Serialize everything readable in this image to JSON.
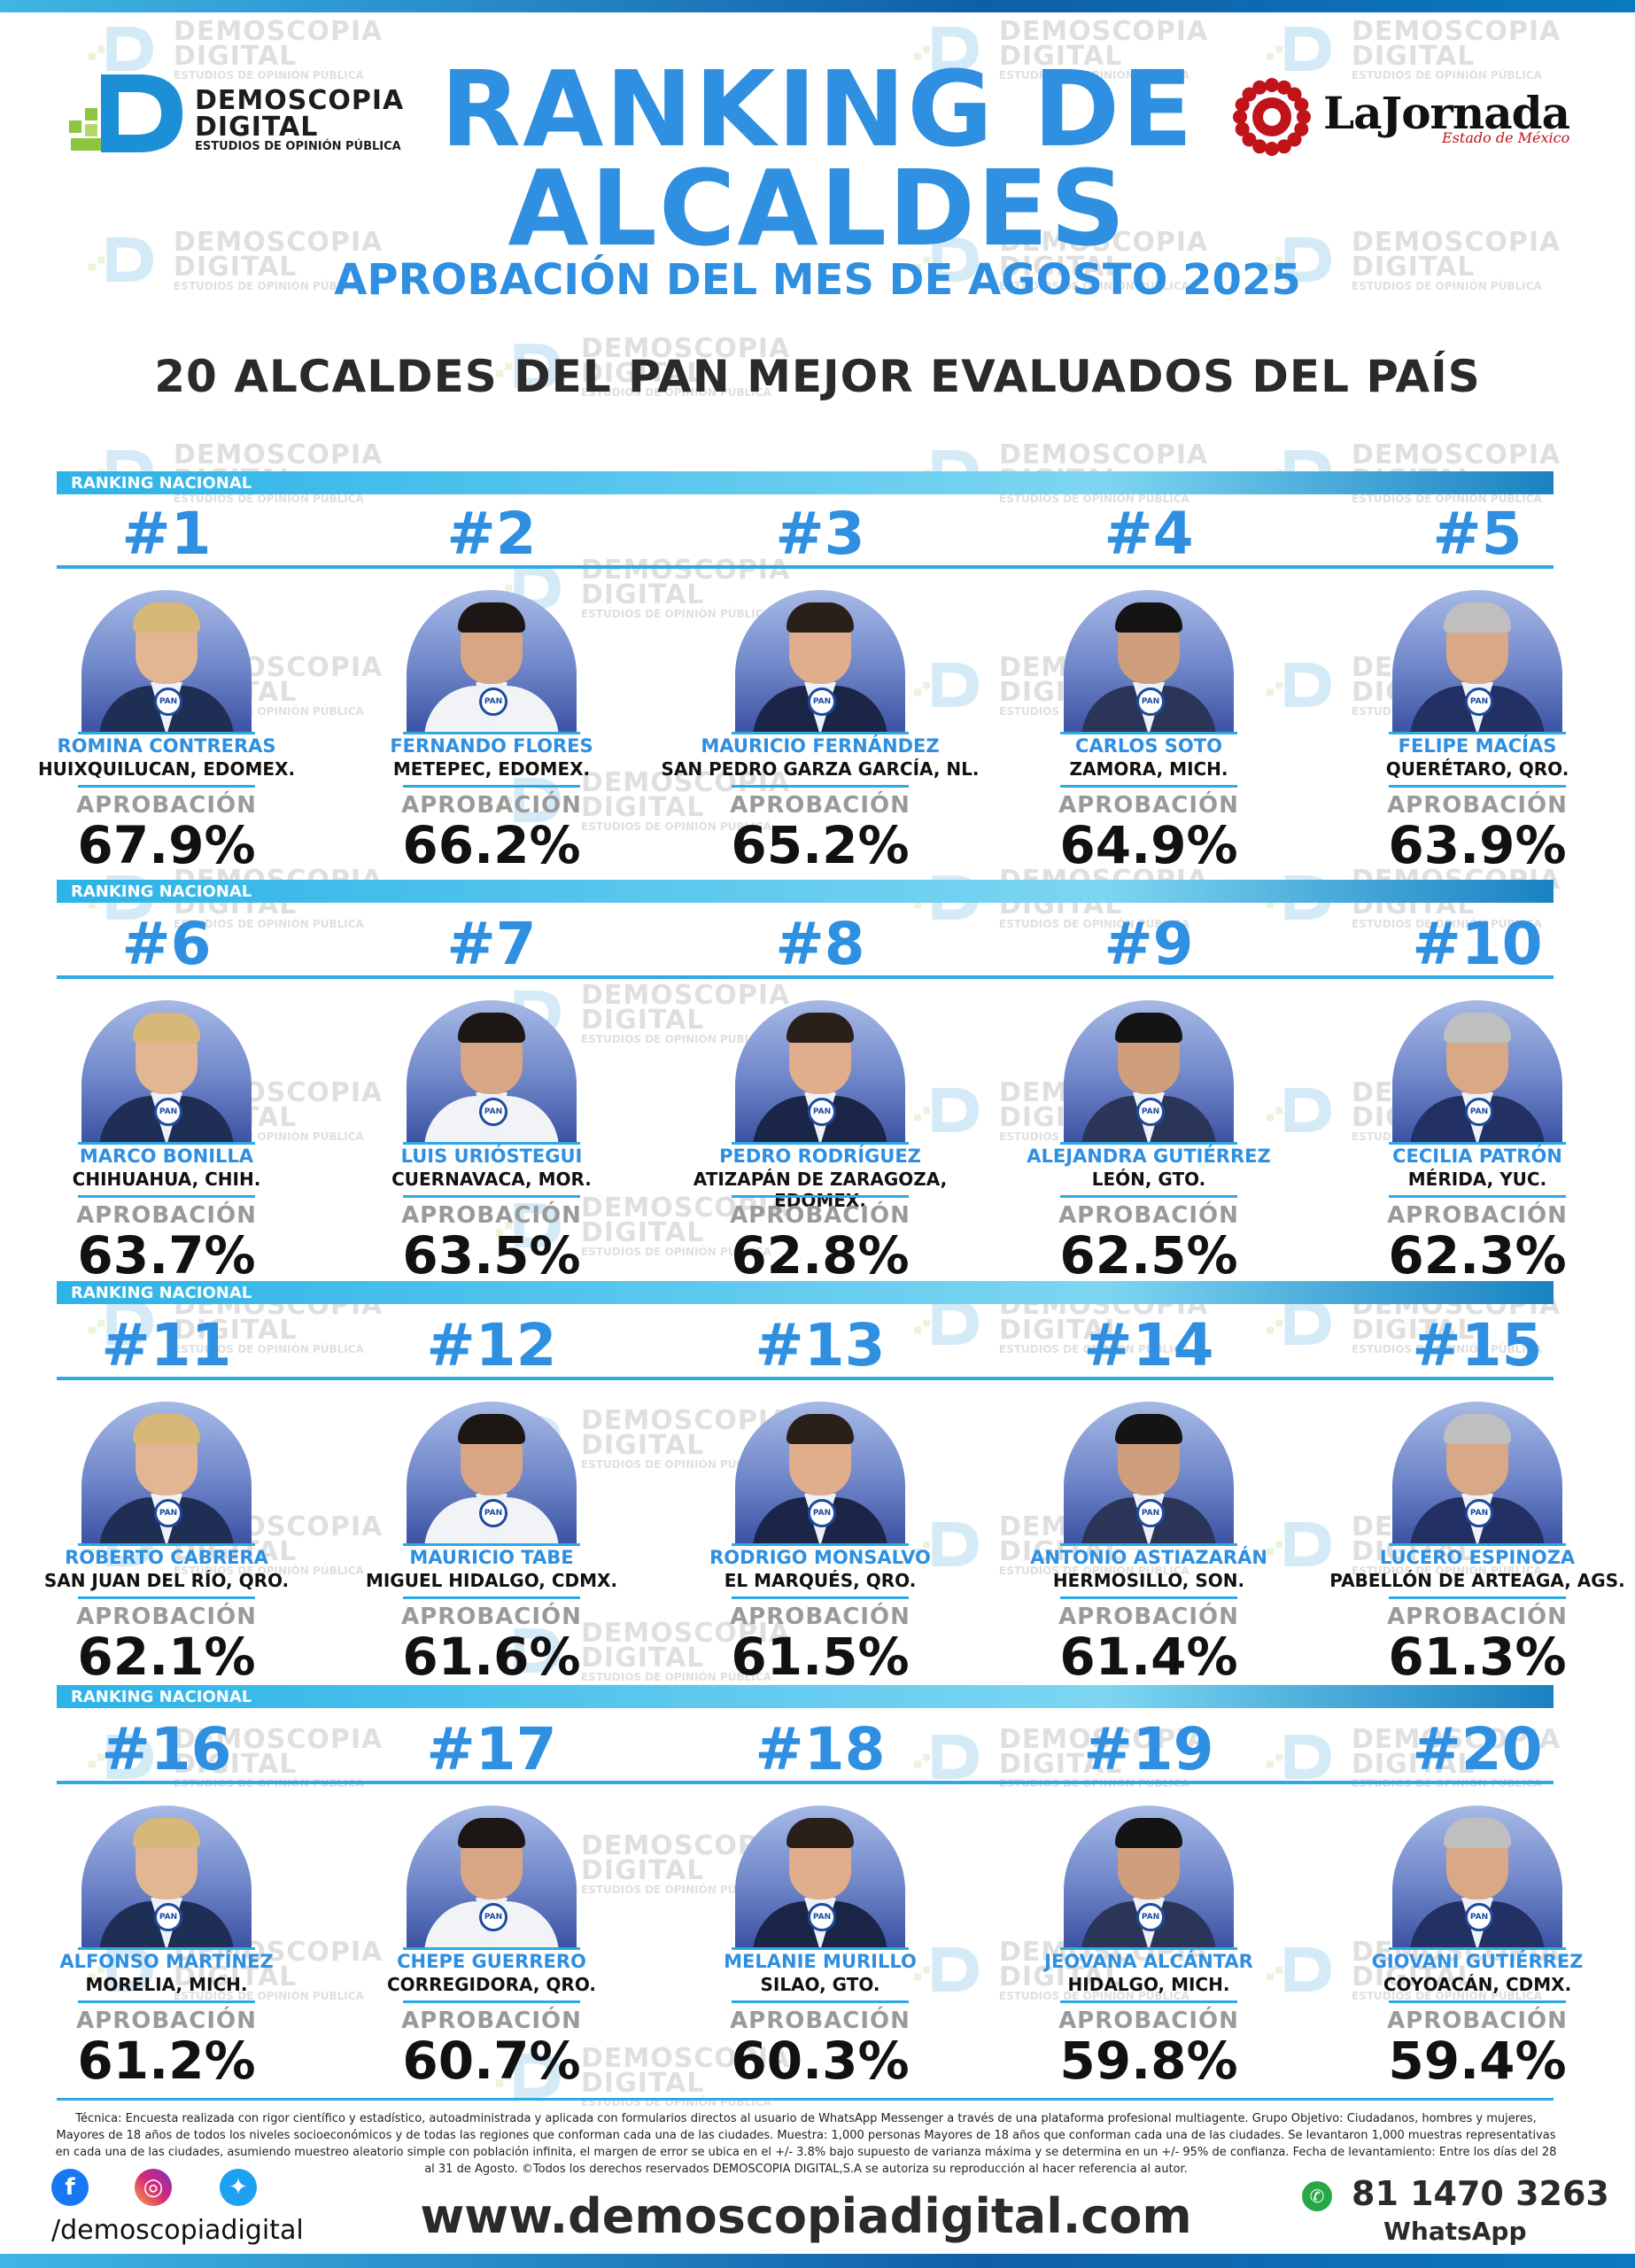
{
  "brand": {
    "line1": "DEMOSCOPIA",
    "line2": "DIGITAL",
    "line3": "ESTUDIOS DE OPINIÓN PÚBLICA"
  },
  "title": {
    "line1": "RANKING DE",
    "line2": "ALCALDES",
    "subtitle": "APROBACIÓN DEL MES DE AGOSTO 2025",
    "heading": "20 ALCALDES DEL PAN MEJOR EVALUADOS DEL PAÍS"
  },
  "partner": {
    "name": "LaJornada",
    "subname": "Estado de México"
  },
  "band_label": "RANKING NACIONAL",
  "approval_label": "APROBACIÓN",
  "party_badge": "PAN",
  "mayors": [
    {
      "rank": "#1",
      "name": "ROMINA CONTRERAS",
      "city": "HUIXQUILUCAN, EDOMEX.",
      "approval": "67.9%",
      "approval_value": 67.9
    },
    {
      "rank": "#2",
      "name": "FERNANDO FLORES",
      "city": "METEPEC, EDOMEX.",
      "approval": "66.2%",
      "approval_value": 66.2
    },
    {
      "rank": "#3",
      "name": "MAURICIO FERNÁNDEZ",
      "city": "SAN PEDRO GARZA GARCÍA, NL.",
      "approval": "65.2%",
      "approval_value": 65.2
    },
    {
      "rank": "#4",
      "name": "CARLOS SOTO",
      "city": "ZAMORA, MICH.",
      "approval": "64.9%",
      "approval_value": 64.9
    },
    {
      "rank": "#5",
      "name": "FELIPE MACÍAS",
      "city": "QUERÉTARO, QRO.",
      "approval": "63.9%",
      "approval_value": 63.9
    },
    {
      "rank": "#6",
      "name": "MARCO BONILLA",
      "city": "CHIHUAHUA, CHIH.",
      "approval": "63.7%",
      "approval_value": 63.7
    },
    {
      "rank": "#7",
      "name": "LUIS URIÓSTEGUI",
      "city": "CUERNAVACA, MOR.",
      "approval": "63.5%",
      "approval_value": 63.5
    },
    {
      "rank": "#8",
      "name": "PEDRO RODRÍGUEZ",
      "city": "ATIZAPÁN DE ZARAGOZA, EDOMEX.",
      "approval": "62.8%",
      "approval_value": 62.8
    },
    {
      "rank": "#9",
      "name": "ALEJANDRA GUTIÉRREZ",
      "city": "LEÓN, GTO.",
      "approval": "62.5%",
      "approval_value": 62.5
    },
    {
      "rank": "#10",
      "name": "CECILIA PATRÓN",
      "city": "MÉRIDA, YUC.",
      "approval": "62.3%",
      "approval_value": 62.3
    },
    {
      "rank": "#11",
      "name": "ROBERTO CABRERA",
      "city": "SAN JUAN DEL RÍO, QRO.",
      "approval": "62.1%",
      "approval_value": 62.1
    },
    {
      "rank": "#12",
      "name": "MAURICIO TABE",
      "city": "MIGUEL HIDALGO, CDMX.",
      "approval": "61.6%",
      "approval_value": 61.6
    },
    {
      "rank": "#13",
      "name": "RODRIGO MONSALVO",
      "city": "EL MARQUÉS, QRO.",
      "approval": "61.5%",
      "approval_value": 61.5
    },
    {
      "rank": "#14",
      "name": "ANTONIO ASTIAZARÁN",
      "city": "HERMOSILLO, SON.",
      "approval": "61.4%",
      "approval_value": 61.4
    },
    {
      "rank": "#15",
      "name": "LUCERO ESPINOZA",
      "city": "PABELLÓN DE ARTEAGA, AGS.",
      "approval": "61.3%",
      "approval_value": 61.3
    },
    {
      "rank": "#16",
      "name": "ALFONSO MARTÍNEZ",
      "city": "MORELIA, MICH.",
      "approval": "61.2%",
      "approval_value": 61.2
    },
    {
      "rank": "#17",
      "name": "CHEPE GUERRERO",
      "city": "CORREGIDORA, QRO.",
      "approval": "60.7%",
      "approval_value": 60.7
    },
    {
      "rank": "#18",
      "name": "MELANIE MURILLO",
      "city": "SILAO, GTO.",
      "approval": "60.3%",
      "approval_value": 60.3
    },
    {
      "rank": "#19",
      "name": "JEOVANA ALCÁNTAR",
      "city": "HIDALGO, MICH.",
      "approval": "59.8%",
      "approval_value": 59.8
    },
    {
      "rank": "#20",
      "name": "GIOVANI GUTIÉRREZ",
      "city": "COYOACÁN, CDMX.",
      "approval": "59.4%",
      "approval_value": 59.4
    }
  ],
  "footer": {
    "technical": "Técnica: Encuesta realizada con rigor científico y estadístico, autoadministrada y aplicada con formularios directos al usuario de WhatsApp Messenger a través de una plataforma profesional multiagente. Grupo Objetivo: Ciudadanos, hombres y mujeres, Mayores de 18 años de todos los niveles socioeconómicos y de todas las regiones que conforman cada una de las ciudades. Muestra: 1,000 personas Mayores de 18 años que conforman cada una de las ciudades. Se levantaron 1,000 muestras representativas en cada una de las ciudades, asumiendo muestreo aleatorio simple con población infinita, el margen de error se ubica en el +/- 3.8% bajo supuesto de varianza máxima y se determina en un +/- 95% de confianza. Fecha de levantamiento: Entre los días del 28 al 31 de Agosto. ©Todos los derechos reservados DEMOSCOPIA DIGITAL,S.A se autoriza su reproducción al hacer referencia al autor.",
    "social_handle": "/demoscopiadigital",
    "website": "www.demoscopiadigital.com",
    "phone": "81 1470 3263",
    "whatsapp_label": "WhatsApp"
  },
  "colors": {
    "accent_blue": "#2f8fe0",
    "band_cyan": "#2cb3e8",
    "brand_green": "#8cc63f",
    "jornada_red": "#c0131a"
  }
}
